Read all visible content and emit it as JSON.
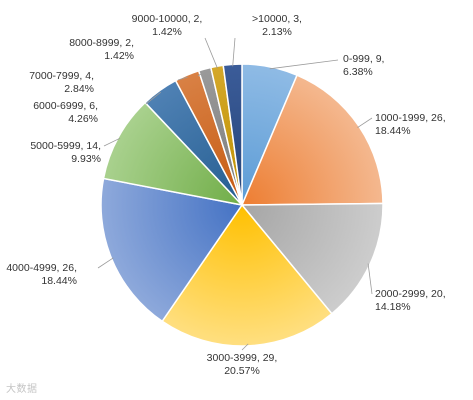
{
  "chart_data": {
    "type": "pie",
    "title": "",
    "slices": [
      {
        "label": "0-999",
        "value": 9,
        "percent": "6.38%",
        "color": "#5b9bd5",
        "color_light": "#8fbbe5"
      },
      {
        "label": "1000-1999",
        "value": 26,
        "percent": "18.44%",
        "color": "#ed7d31",
        "color_light": "#f4b88f"
      },
      {
        "label": "2000-2999",
        "value": 20,
        "percent": "14.18%",
        "color": "#a5a5a5",
        "color_light": "#cdcdcd"
      },
      {
        "label": "3000-3999",
        "value": 29,
        "percent": "20.57%",
        "color": "#ffc000",
        "color_light": "#ffdf80"
      },
      {
        "label": "4000-4999",
        "value": 26,
        "percent": "18.44%",
        "color": "#4472c4",
        "color_light": "#8ea9db"
      },
      {
        "label": "5000-5999",
        "value": 14,
        "percent": "9.93%",
        "color": "#70ad47",
        "color_light": "#a9d18e"
      },
      {
        "label": "6000-6999",
        "value": 6,
        "percent": "4.26%",
        "color": "#255e91",
        "color_light": "#4f81b4"
      },
      {
        "label": "7000-7999",
        "value": 4,
        "percent": "2.84%",
        "color": "#c55a11",
        "color_light": "#d98145"
      },
      {
        "label": "8000-8999",
        "value": 2,
        "percent": "1.42%",
        "color": "#7b7b7b",
        "color_light": "#9a9a9a"
      },
      {
        "label": "9000-10000",
        "value": 2,
        "percent": "1.42%",
        "color": "#bf9000",
        "color_light": "#d4a82a"
      },
      {
        "label": ">10000",
        "value": 3,
        "percent": "2.13%",
        "color": "#264478",
        "color_light": "#3b5c99"
      }
    ]
  },
  "watermark": {
    "text": "大数据"
  }
}
